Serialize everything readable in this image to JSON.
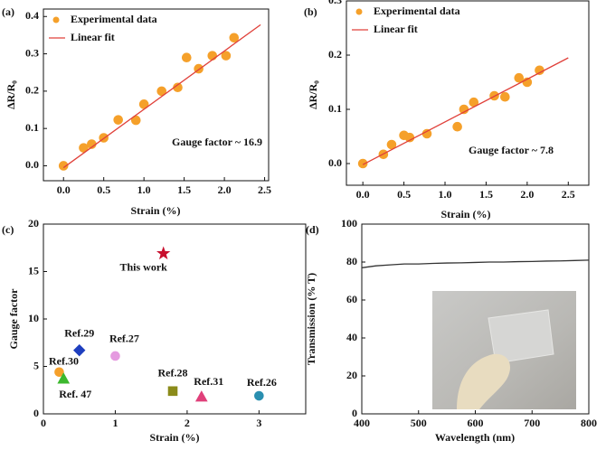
{
  "chart_data": [
    {
      "type": "scatter",
      "panel_label": "(a)",
      "xlabel": "Strain (%)",
      "ylabel": "ΔR/R₀",
      "annotation": "Gauge factor ~ 16.9",
      "legend": "upper left",
      "xlim": [
        -0.25,
        2.55
      ],
      "ylim": [
        -0.04,
        0.42
      ],
      "xticks": [
        {
          "value": 0,
          "label": "0.0"
        },
        0.5,
        {
          "value": 1,
          "label": "1.0"
        },
        1.5,
        {
          "value": 2,
          "label": "2.0"
        },
        2.5
      ],
      "yticks": [
        {
          "value": 0,
          "label": "0.0"
        },
        0.1,
        0.2,
        0.3,
        0.4
      ],
      "series": [
        {
          "name": "Experimental data",
          "type": "scatter",
          "color": "#f5a02a",
          "x": [
            0,
            0.25,
            0.35,
            0.5,
            0.68,
            0.9,
            1.0,
            1.22,
            1.42,
            1.53,
            1.68,
            1.85,
            2.02,
            2.12
          ],
          "values": [
            0,
            0.048,
            0.058,
            0.075,
            0.123,
            0.122,
            0.165,
            0.2,
            0.21,
            0.29,
            0.26,
            0.295,
            0.295,
            0.343
          ]
        },
        {
          "name": "Linear fit",
          "type": "line",
          "color": "#e0403a",
          "x": [
            0,
            2.45
          ],
          "values": [
            -0.005,
            0.378
          ]
        }
      ]
    },
    {
      "type": "scatter",
      "panel_label": "(b)",
      "xlabel": "Strain (%)",
      "ylabel": "ΔR/R₀",
      "annotation": "Gauge factor ~ 7.8",
      "legend": "upper left",
      "xlim": [
        -0.2,
        2.75
      ],
      "ylim": [
        -0.04,
        0.3
      ],
      "xticks": [
        {
          "value": 0,
          "label": "0.0"
        },
        0.5,
        {
          "value": 1,
          "label": "1.0"
        },
        1.5,
        {
          "value": 2,
          "label": "2.0"
        },
        2.5
      ],
      "yticks": [
        {
          "value": 0,
          "label": "0.0"
        },
        0.1,
        0.2,
        0.3
      ],
      "series": [
        {
          "name": "Experimental data",
          "type": "scatter",
          "color": "#f5a02a",
          "x": [
            0,
            0.25,
            0.35,
            0.5,
            0.57,
            0.78,
            1.15,
            1.23,
            1.35,
            1.6,
            1.73,
            1.9,
            2.0,
            2.15
          ],
          "values": [
            0,
            0.017,
            0.035,
            0.052,
            0.048,
            0.055,
            0.068,
            0.1,
            0.113,
            0.125,
            0.123,
            0.158,
            0.15,
            0.172
          ]
        },
        {
          "name": "Linear fit",
          "type": "line",
          "color": "#e0403a",
          "x": [
            0,
            2.5
          ],
          "values": [
            -0.002,
            0.195
          ]
        }
      ]
    },
    {
      "type": "scatter",
      "panel_label": "(c)",
      "xlabel": "Strain (%)",
      "ylabel": "Gauge factor",
      "xlim": [
        0,
        3.65
      ],
      "ylim": [
        0,
        20
      ],
      "xticks": [
        0,
        1,
        2,
        3
      ],
      "yticks": [
        0,
        5,
        10,
        15,
        20
      ],
      "series": [
        {
          "name": "This work",
          "type": "scatter",
          "marker": "star",
          "color": "#c8102e",
          "x": [
            1.67
          ],
          "values": [
            16.9
          ]
        },
        {
          "name": "Ref.29",
          "type": "scatter",
          "marker": "diamond",
          "color": "#1f3fbf",
          "x": [
            0.5
          ],
          "values": [
            6.7
          ]
        },
        {
          "name": "Ref.27",
          "type": "scatter",
          "marker": "circle",
          "color": "#e59be0",
          "x": [
            1.0
          ],
          "values": [
            6.1
          ]
        },
        {
          "name": "Ref.30",
          "type": "scatter",
          "marker": "circle",
          "color": "#f5a02a",
          "x": [
            0.22
          ],
          "values": [
            4.4
          ]
        },
        {
          "name": "Ref. 47",
          "type": "scatter",
          "marker": "triangle",
          "color": "#3cb82e",
          "x": [
            0.28
          ],
          "values": [
            3.7
          ]
        },
        {
          "name": "Ref.28",
          "type": "scatter",
          "marker": "square",
          "color": "#8b8b1a",
          "x": [
            1.8
          ],
          "values": [
            2.4
          ]
        },
        {
          "name": "Ref.31",
          "type": "scatter",
          "marker": "triangle",
          "color": "#e0407a",
          "x": [
            2.2
          ],
          "values": [
            1.8
          ]
        },
        {
          "name": "Ref.26",
          "type": "scatter",
          "marker": "circle",
          "color": "#2a8fb0",
          "x": [
            3.0
          ],
          "values": [
            1.9
          ]
        }
      ]
    },
    {
      "type": "line",
      "panel_label": "(d)",
      "xlabel": "Wavelength (nm)",
      "ylabel": "Transmission (% T)",
      "color": "#333333",
      "xlim": [
        400,
        800
      ],
      "ylim": [
        0,
        100
      ],
      "xticks": [
        400,
        500,
        600,
        700,
        800
      ],
      "yticks": [
        0,
        20,
        40,
        60,
        80,
        100
      ],
      "x": [
        400,
        425,
        450,
        475,
        500,
        525,
        550,
        575,
        600,
        625,
        650,
        675,
        700,
        725,
        750,
        775,
        800
      ],
      "values": [
        77,
        78,
        78.5,
        79,
        79,
        79.3,
        79.5,
        79.6,
        79.8,
        80,
        80,
        80.2,
        80.3,
        80.5,
        80.6,
        80.8,
        81
      ]
    }
  ]
}
